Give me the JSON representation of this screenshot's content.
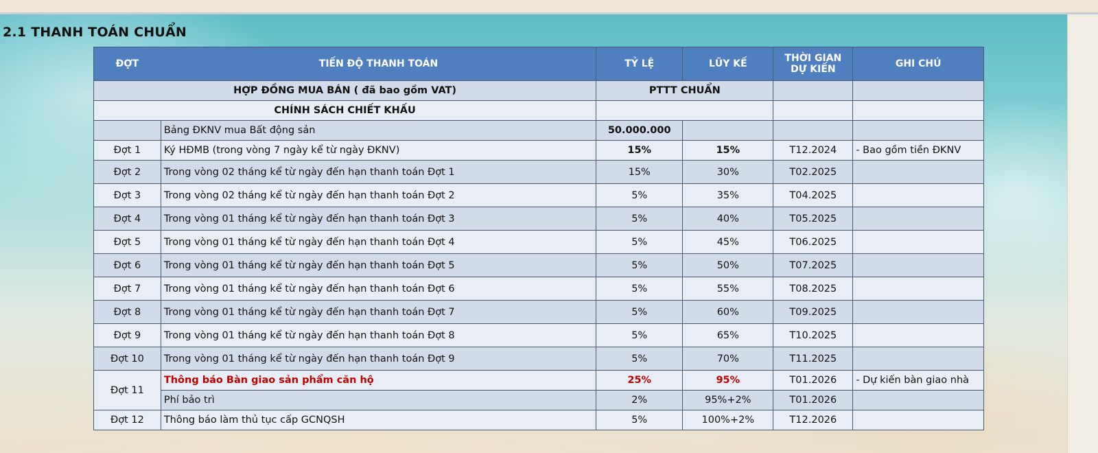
{
  "section_title": "2.1 THANH TOÁN CHUẨN",
  "headers": {
    "dot": "ĐỢT",
    "tien_do": "TIẾN ĐỘ THANH TOÁN",
    "ty_le": "TỶ LỆ",
    "luy_ke": "LŨY KẾ",
    "thoi_gian": "THỜI GIAN DỰ KIẾN",
    "ghi_chu": "GHI CHÚ"
  },
  "contract_row": {
    "label": "HỢP ĐỒNG MUA BÁN ( đã bao gồm VAT)",
    "value": "PTTT CHUẨN"
  },
  "discount_row": {
    "label": "CHÍNH SÁCH CHIẾT KHẤU"
  },
  "deposit_row": {
    "label": "Bảng ĐKNV mua Bất động sản",
    "amount": "50.000.000"
  },
  "rows": [
    {
      "dot": "Đợt 1",
      "desc": "Ký HĐMB (trong vòng 7 ngày kể từ ngày ĐKNV)",
      "ty_le": "15%",
      "luy_ke": "15%",
      "time": "T12.2024",
      "note": "- Bao gồm tiền ĐKNV"
    },
    {
      "dot": "Đợt 2",
      "desc": "Trong vòng 02 tháng kể từ ngày đến hạn thanh toán Đợt 1",
      "ty_le": "15%",
      "luy_ke": "30%",
      "time": "T02.2025",
      "note": ""
    },
    {
      "dot": "Đợt 3",
      "desc": "Trong vòng 02 tháng kể từ ngày đến hạn thanh toán Đợt 2",
      "ty_le": "5%",
      "luy_ke": "35%",
      "time": "T04.2025",
      "note": ""
    },
    {
      "dot": "Đợt 4",
      "desc": "Trong vòng 01 tháng kể từ ngày đến hạn thanh toán Đợt 3",
      "ty_le": "5%",
      "luy_ke": "40%",
      "time": "T05.2025",
      "note": ""
    },
    {
      "dot": "Đợt 5",
      "desc": "Trong vòng 01 tháng kể từ ngày đến hạn thanh toán Đợt 4",
      "ty_le": "5%",
      "luy_ke": "45%",
      "time": "T06.2025",
      "note": ""
    },
    {
      "dot": "Đợt 6",
      "desc": "Trong vòng 01 tháng kể từ ngày đến hạn thanh toán Đợt 5",
      "ty_le": "5%",
      "luy_ke": "50%",
      "time": "T07.2025",
      "note": ""
    },
    {
      "dot": "Đợt 7",
      "desc": "Trong vòng 01 tháng kể từ ngày đến hạn thanh toán Đợt 6",
      "ty_le": "5%",
      "luy_ke": "55%",
      "time": "T08.2025",
      "note": ""
    },
    {
      "dot": "Đợt 8",
      "desc": "Trong vòng 01 tháng kể từ ngày đến hạn thanh toán Đợt 7",
      "ty_le": "5%",
      "luy_ke": "60%",
      "time": "T09.2025",
      "note": ""
    },
    {
      "dot": "Đợt 9",
      "desc": "Trong vòng 01 tháng kể từ ngày đến hạn thanh toán Đợt 8",
      "ty_le": "5%",
      "luy_ke": "65%",
      "time": "T10.2025",
      "note": ""
    },
    {
      "dot": "Đợt 10",
      "desc": "Trong vòng 01 tháng kể từ ngày đến hạn thanh toán Đợt 9",
      "ty_le": "5%",
      "luy_ke": "70%",
      "time": "T11.2025",
      "note": ""
    }
  ],
  "dot11": {
    "dot": "Đợt 11",
    "handover": {
      "desc": "Thông báo Bàn giao sản phẩm căn hộ",
      "ty_le": "25%",
      "luy_ke": "95%",
      "time": "T01.2026",
      "note": "- Dự kiến bàn giao nhà"
    },
    "maintenance": {
      "desc": "Phí bảo trì",
      "ty_le": "2%",
      "luy_ke": "95%+2%",
      "time": "T01.2026",
      "note": ""
    }
  },
  "dot12": {
    "dot": "Đợt 12",
    "desc": "Thông báo làm thủ tục cấp GCNQSH",
    "ty_le": "5%",
    "luy_ke": "100%+2%",
    "time": "T12.2026",
    "note": ""
  }
}
